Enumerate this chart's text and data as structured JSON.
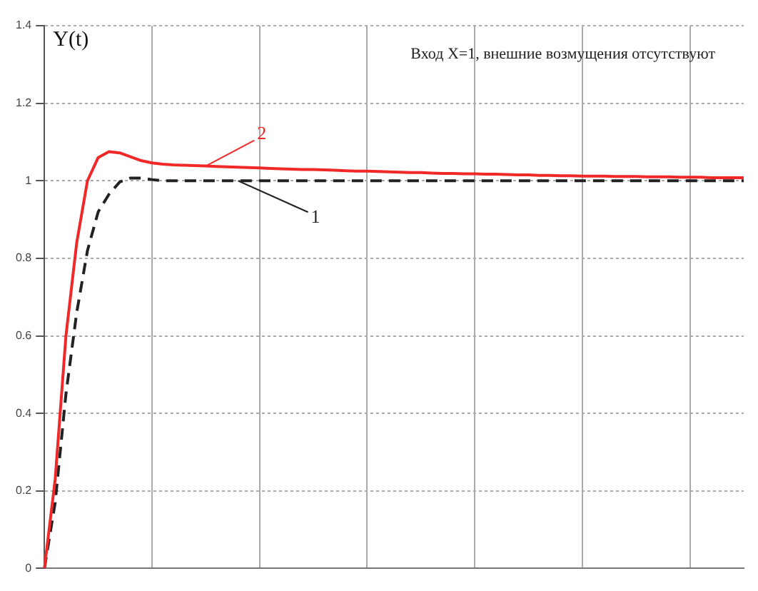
{
  "chart_data": {
    "type": "line",
    "ylabel": "Y(t)",
    "annotations": [
      "Вход X=1, внешние возмущения отсутствуют"
    ],
    "categories": [
      null,
      null,
      null,
      null,
      null,
      null,
      null,
      null,
      null,
      null,
      null,
      null,
      null,
      null,
      null,
      null,
      null,
      null,
      null,
      null,
      null,
      null,
      null,
      null,
      null,
      null,
      null,
      null,
      null,
      null,
      null,
      null,
      null,
      null,
      null,
      null,
      null,
      null,
      null,
      null,
      null,
      null,
      null,
      null,
      null,
      null,
      null,
      null,
      null,
      null,
      null,
      null,
      null,
      null,
      null,
      null,
      null,
      null,
      null,
      null,
      null,
      null,
      null,
      null,
      null,
      null
    ],
    "ylim": [
      0,
      1.4
    ],
    "yticks": [
      0,
      0.2,
      0.4,
      0.6,
      0.8,
      1,
      1.2,
      1.4
    ],
    "tick_labels": "y",
    "grid": true,
    "legend": false,
    "marker": "none",
    "series": [
      {
        "name": "2",
        "color": "#f02828",
        "line_style": "solid",
        "values": [
          0,
          0.23,
          0.6,
          0.84,
          1.0,
          1.06,
          1.075,
          1.072,
          1.062,
          1.052,
          1.046,
          1.043,
          1.041,
          1.04,
          1.039,
          1.038,
          1.037,
          1.036,
          1.035,
          1.034,
          1.033,
          1.032,
          1.031,
          1.03,
          1.029,
          1.029,
          1.028,
          1.027,
          1.026,
          1.025,
          1.025,
          1.024,
          1.023,
          1.022,
          1.021,
          1.021,
          1.02,
          1.019,
          1.019,
          1.018,
          1.018,
          1.017,
          1.017,
          1.016,
          1.015,
          1.015,
          1.014,
          1.014,
          1.013,
          1.013,
          1.012,
          1.012,
          1.012,
          1.011,
          1.011,
          1.011,
          1.01,
          1.01,
          1.01,
          1.009,
          1.009,
          1.009,
          1.008,
          1.008,
          1.008,
          1.008
        ]
      },
      {
        "name": "1",
        "color": "#222222",
        "line_style": "dashed",
        "values": [
          0,
          0.17,
          0.45,
          0.66,
          0.82,
          0.92,
          0.965,
          0.997,
          1.007,
          1.007,
          1.003,
          1,
          1,
          1,
          1,
          1,
          1,
          1,
          1,
          1,
          1,
          1,
          1,
          1,
          1,
          1,
          1,
          1,
          1,
          1,
          1,
          1,
          1,
          1,
          1,
          1,
          1,
          1,
          1,
          1,
          1,
          1,
          1,
          1,
          1,
          1,
          1,
          1,
          1,
          1,
          1,
          1,
          1,
          1,
          1,
          1,
          1,
          1,
          1,
          1,
          1,
          1,
          1,
          1,
          1,
          1
        ]
      }
    ]
  }
}
